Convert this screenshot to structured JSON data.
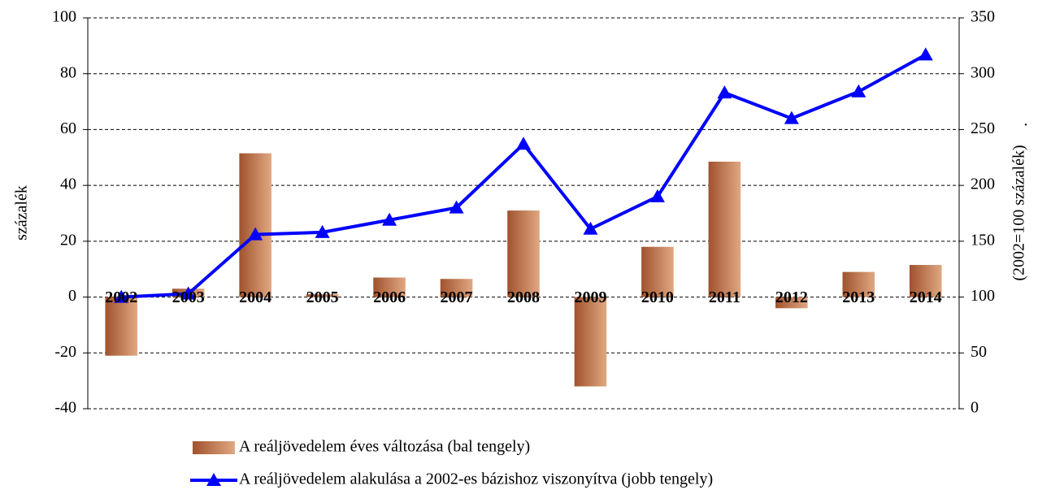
{
  "chart_data": {
    "type": "bar",
    "categories": [
      "2002",
      "2003",
      "2004",
      "2005",
      "2006",
      "2007",
      "2008",
      "2009",
      "2010",
      "2011",
      "2012",
      "2013",
      "2014"
    ],
    "series": [
      {
        "name": "A reáljövedelem éves változása (bal tengely)",
        "type": "bar",
        "color": "#a0522d",
        "values": [
          -21,
          3,
          51.5,
          1,
          7,
          6.5,
          31,
          -32,
          18,
          48.5,
          -4,
          9,
          11.5
        ]
      },
      {
        "name": "A reáljövedelem alakulása a 2002-es bázishoz viszonyítva (jobb tengely)",
        "type": "line",
        "axis": "y2",
        "color": "#0000ff",
        "values": [
          100,
          103,
          156,
          158,
          169,
          180,
          237,
          161,
          190,
          283,
          260,
          284,
          317
        ]
      }
    ],
    "ylabel": "százalék",
    "y2label": "(2002=100 százalék)",
    "annotation": ".",
    "ylim": [
      -40,
      100
    ],
    "yticks": [
      -40,
      -20,
      0,
      20,
      40,
      60,
      80,
      100
    ],
    "y2lim": [
      0,
      350
    ],
    "y2ticks": [
      0,
      50,
      100,
      150,
      200,
      250,
      300,
      350
    ],
    "grid": true,
    "legend": "bottom"
  }
}
